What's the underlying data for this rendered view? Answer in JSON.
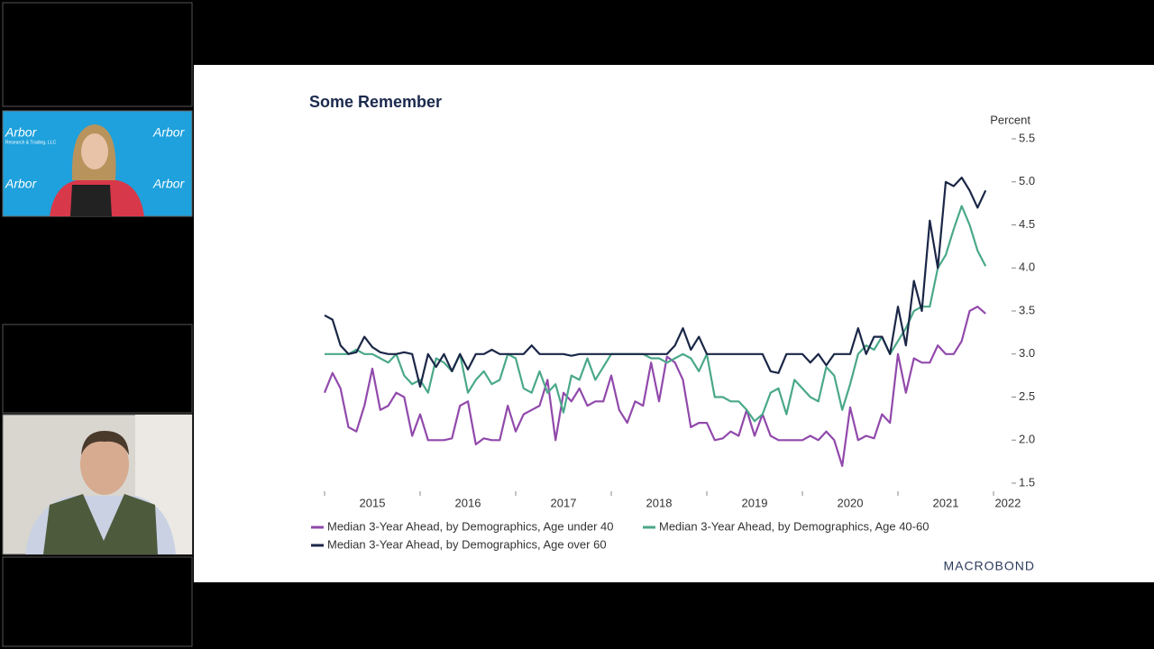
{
  "participants": {
    "logo_text": "Arbor",
    "logo_subtext": "Research & Trading, LLC"
  },
  "chart_data": {
    "type": "line",
    "title": "Some Remember",
    "y_axis_label": "Percent",
    "source": "MACROBOND",
    "x": [
      2015,
      2015.083,
      2015.167,
      2015.25,
      2015.333,
      2015.417,
      2015.5,
      2015.583,
      2015.667,
      2015.75,
      2015.833,
      2015.917,
      2016,
      2016.083,
      2016.167,
      2016.25,
      2016.333,
      2016.417,
      2016.5,
      2016.583,
      2016.667,
      2016.75,
      2016.833,
      2016.917,
      2017,
      2017.083,
      2017.167,
      2017.25,
      2017.333,
      2017.417,
      2017.5,
      2017.583,
      2017.667,
      2017.75,
      2017.833,
      2017.917,
      2018,
      2018.083,
      2018.167,
      2018.25,
      2018.333,
      2018.417,
      2018.5,
      2018.583,
      2018.667,
      2018.75,
      2018.833,
      2018.917,
      2019,
      2019.083,
      2019.167,
      2019.25,
      2019.333,
      2019.417,
      2019.5,
      2019.583,
      2019.667,
      2019.75,
      2019.833,
      2019.917,
      2020,
      2020.083,
      2020.167,
      2020.25,
      2020.333,
      2020.417,
      2020.5,
      2020.583,
      2020.667,
      2020.75,
      2020.833,
      2020.917,
      2021,
      2021.083,
      2021.167,
      2021.25,
      2021.333,
      2021.417,
      2021.5,
      2021.583,
      2021.667,
      2021.75,
      2021.833,
      2021.917
    ],
    "series": [
      {
        "name": "Median 3-Year Ahead, by Demographics, Age under 40",
        "color": "#9149ab",
        "values": [
          2.55,
          2.78,
          2.6,
          2.15,
          2.1,
          2.4,
          2.83,
          2.35,
          2.4,
          2.55,
          2.5,
          2.05,
          2.3,
          2.0,
          2.0,
          2.0,
          2.02,
          2.4,
          2.45,
          1.95,
          2.02,
          2.0,
          2.0,
          2.4,
          2.1,
          2.3,
          2.35,
          2.4,
          2.7,
          2.0,
          2.55,
          2.45,
          2.6,
          2.4,
          2.45,
          2.45,
          2.75,
          2.35,
          2.2,
          2.45,
          2.4,
          2.9,
          2.45,
          2.97,
          2.9,
          2.7,
          2.15,
          2.2,
          2.2,
          2.0,
          2.02,
          2.1,
          2.05,
          2.35,
          2.05,
          2.3,
          2.05,
          2.0,
          2.0,
          2.0,
          2.0,
          2.05,
          2.0,
          2.1,
          2.0,
          1.7,
          2.38,
          2.0,
          2.05,
          2.02,
          2.3,
          2.2,
          3.0,
          2.55,
          2.95,
          2.9,
          2.9,
          3.1,
          3.0,
          3.0,
          3.15,
          3.5,
          3.55,
          3.47
        ]
      },
      {
        "name": "Median 3-Year Ahead, by Demographics, Age 40-60",
        "color": "#4aa88a",
        "values": [
          3.0,
          3.0,
          3.0,
          3.0,
          3.05,
          3.0,
          3.0,
          2.95,
          2.9,
          3.0,
          2.75,
          2.65,
          2.7,
          2.55,
          2.95,
          2.9,
          2.8,
          3.0,
          2.55,
          2.7,
          2.8,
          2.65,
          2.7,
          3.0,
          2.95,
          2.6,
          2.55,
          2.8,
          2.55,
          2.65,
          2.32,
          2.75,
          2.7,
          2.95,
          2.7,
          2.85,
          3.0,
          3.0,
          3.0,
          3.0,
          3.0,
          2.95,
          2.95,
          2.9,
          2.95,
          3.0,
          2.95,
          2.8,
          3.0,
          2.5,
          2.5,
          2.45,
          2.45,
          2.35,
          2.22,
          2.3,
          2.55,
          2.6,
          2.3,
          2.7,
          2.6,
          2.5,
          2.45,
          2.85,
          2.75,
          2.35,
          2.65,
          3.0,
          3.1,
          3.05,
          3.2,
          3.0,
          3.15,
          3.3,
          3.5,
          3.55,
          3.55,
          4.0,
          4.15,
          4.45,
          4.72,
          4.5,
          4.2,
          4.02
        ]
      },
      {
        "name": "Median 3-Year Ahead, by Demographics, Age over 60",
        "color": "#1b2747",
        "values": [
          3.45,
          3.4,
          3.1,
          3.0,
          3.02,
          3.2,
          3.08,
          3.02,
          3.0,
          3.0,
          3.02,
          3.0,
          2.62,
          3.0,
          2.85,
          3.0,
          2.8,
          3.0,
          2.82,
          3.0,
          3.0,
          3.05,
          3.0,
          3.0,
          3.0,
          3.0,
          3.1,
          3.0,
          3.0,
          3.0,
          3.0,
          2.98,
          3.0,
          3.0,
          3.0,
          3.0,
          3.0,
          3.0,
          3.0,
          3.0,
          3.0,
          3.0,
          3.0,
          3.0,
          3.1,
          3.3,
          3.05,
          3.2,
          3.0,
          3.0,
          3.0,
          3.0,
          3.0,
          3.0,
          3.0,
          3.0,
          2.8,
          2.78,
          3.0,
          3.0,
          3.0,
          2.9,
          3.0,
          2.87,
          3.0,
          3.0,
          3.0,
          3.3,
          3.0,
          3.2,
          3.2,
          3.0,
          3.55,
          3.1,
          3.85,
          3.5,
          4.55,
          4.0,
          5.0,
          4.95,
          5.05,
          4.9,
          4.7,
          4.9
        ]
      }
    ],
    "xlim": [
      2015,
      2022
    ],
    "xticks": [
      {
        "value": 2015.5,
        "label": "2015"
      },
      {
        "value": 2016.5,
        "label": "2016"
      },
      {
        "value": 2017.5,
        "label": "2017"
      },
      {
        "value": 2018.5,
        "label": "2018"
      },
      {
        "value": 2019.5,
        "label": "2019"
      },
      {
        "value": 2020.5,
        "label": "2020"
      },
      {
        "value": 2021.5,
        "label": "2021"
      },
      {
        "value": 2022.15,
        "label": "2022"
      }
    ],
    "x_minor_ticks": [
      2015,
      2016,
      2017,
      2018,
      2019,
      2020,
      2021,
      2022
    ],
    "ylim": [
      1.5,
      5.5
    ],
    "yticks": [
      1.5,
      {
        "value": 2,
        "label": "2.0"
      },
      2.5,
      {
        "value": 3,
        "label": "3.0"
      },
      3.5,
      {
        "value": 4,
        "label": "4.0"
      },
      4.5,
      {
        "value": 5,
        "label": "5.0"
      },
      5.5
    ],
    "y_axis_side": "right",
    "grid": false
  }
}
